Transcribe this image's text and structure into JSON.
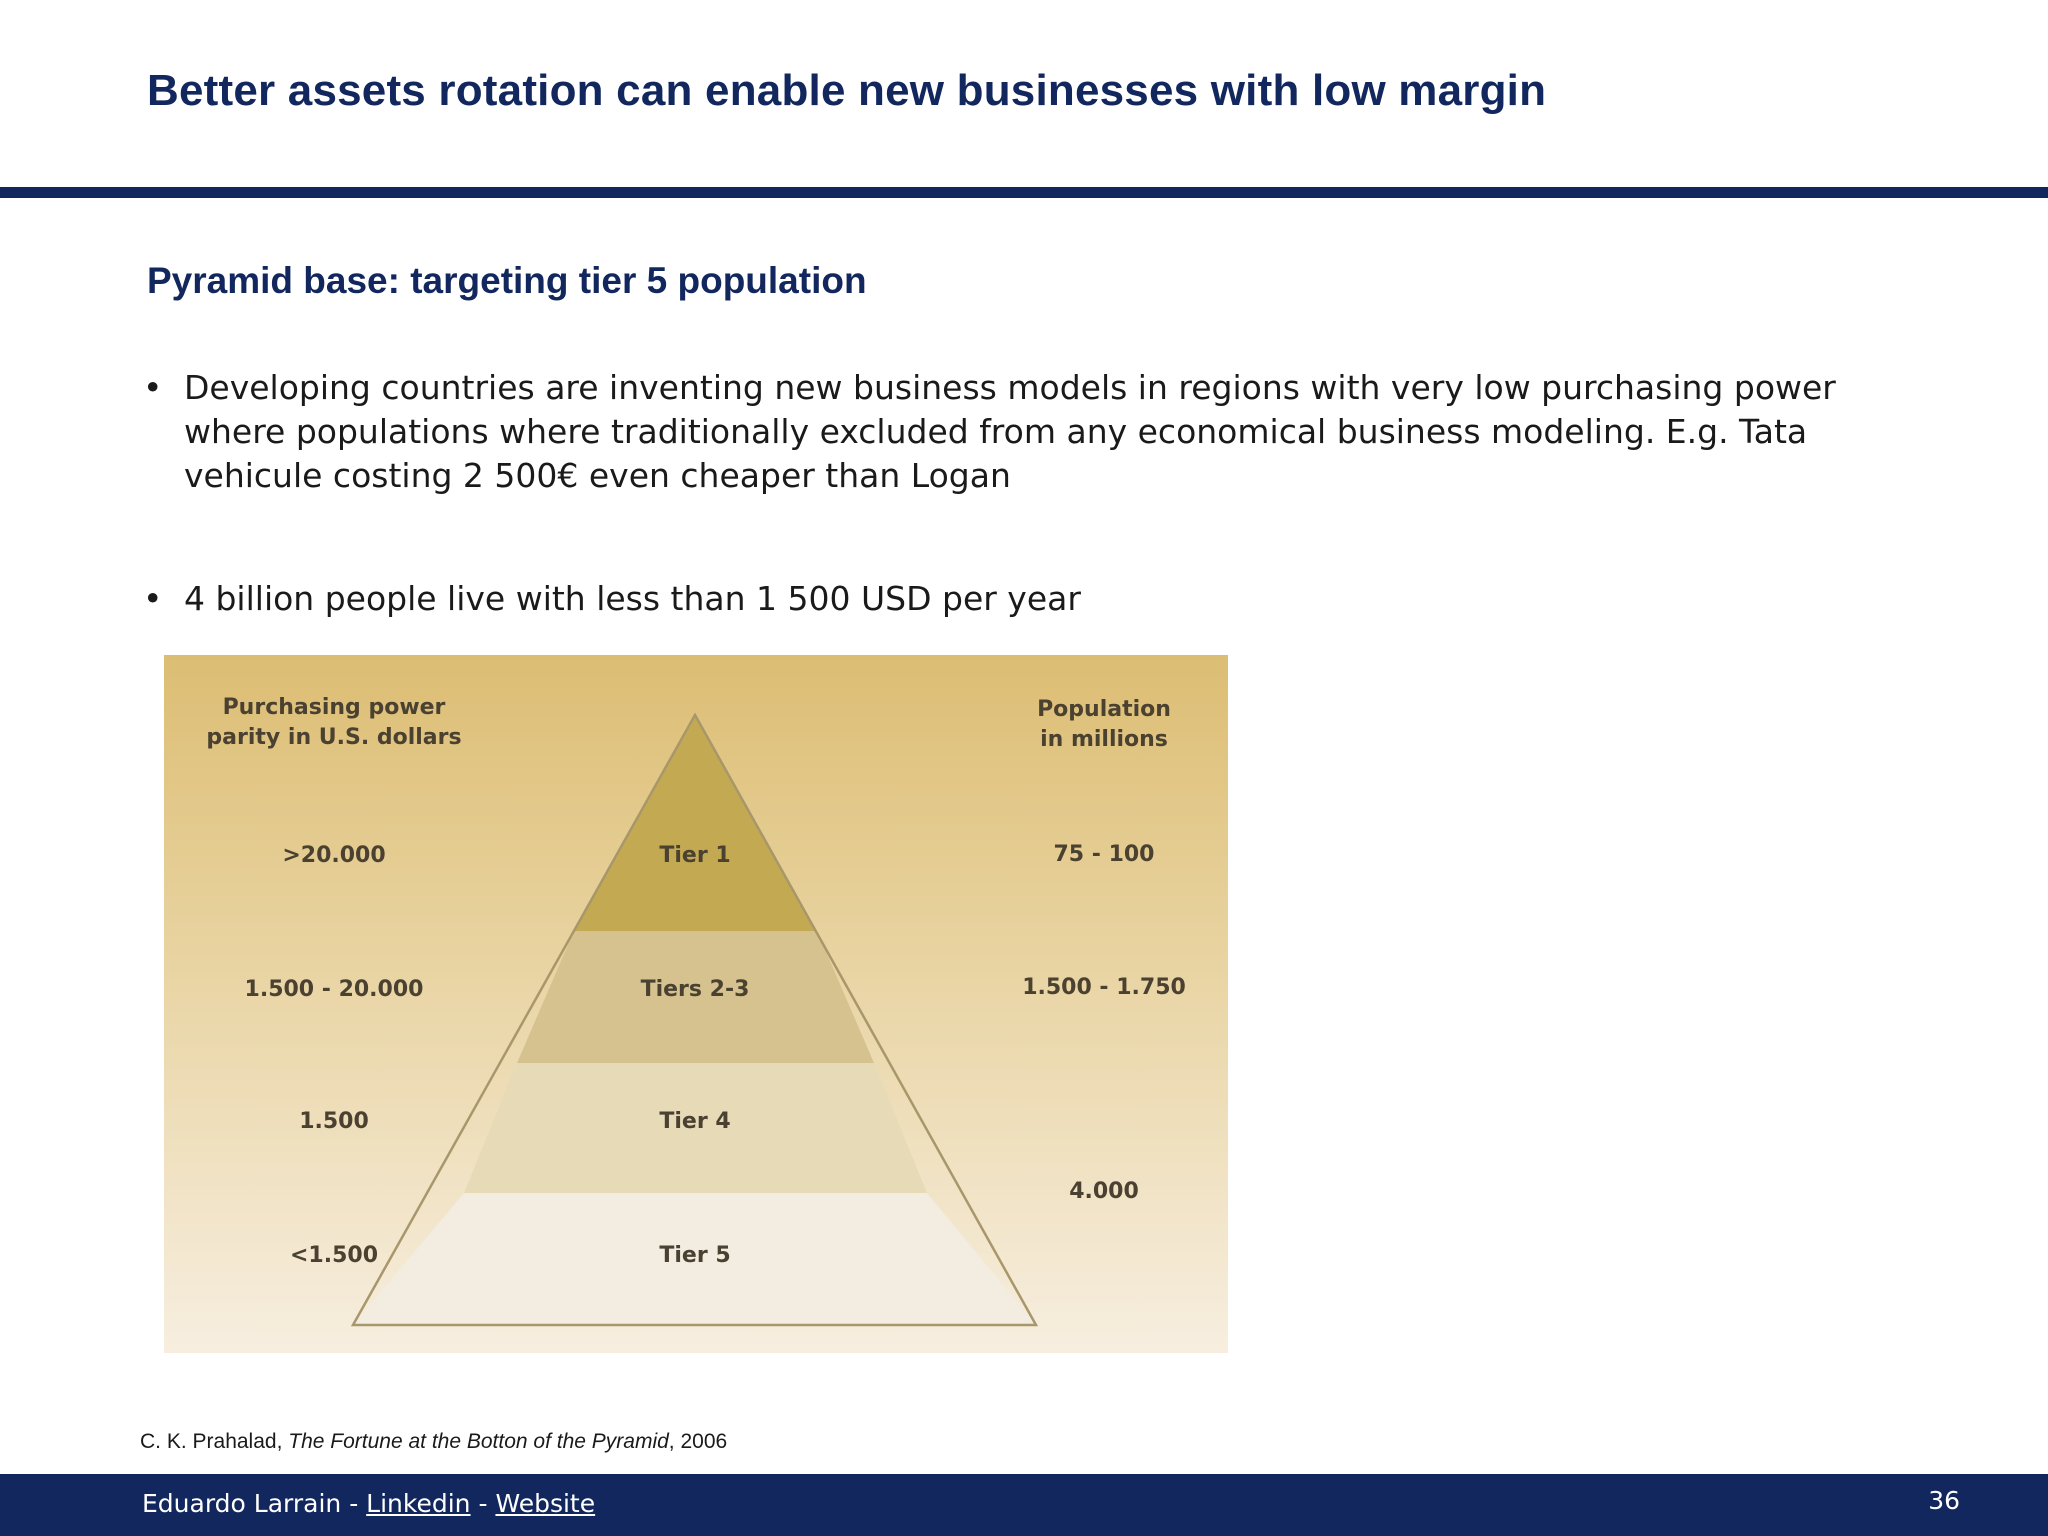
{
  "slide": {
    "title": "Better assets rotation can enable new businesses with low margin",
    "subtitle": "Pyramid base: targeting tier 5 population",
    "bullets": [
      "Developing countries are inventing new business models in regions with very low purchasing power where populations where traditionally excluded from any economical business modeling. E.g. Tata vehicule costing 2 500€ even cheaper than Logan",
      "4 billion people live with less than 1 500 USD per year"
    ],
    "bullet_symbol": "•"
  },
  "pyramid": {
    "left_header_line1": "Purchasing power",
    "left_header_line2": "parity in U.S. dollars",
    "right_header_line1": "Population",
    "right_header_line2": "in millions",
    "tiers": [
      {
        "name": "Tier 1",
        "ppp": ">20.000",
        "population": "75 - 100",
        "color": "#c3aa52"
      },
      {
        "name": "Tiers 2-3",
        "ppp": "1.500 - 20.000",
        "population": "1.500 - 1.750",
        "color": "#d6c28e"
      },
      {
        "name": "Tier 4",
        "ppp": "1.500",
        "population": "",
        "color": "#e6dab7"
      },
      {
        "name": "Tier 5",
        "ppp": "<1.500",
        "population": "",
        "color": "#f2ede0"
      }
    ],
    "combined_population_tiers_4_5": "4.000"
  },
  "citation": {
    "author": "C. K. Prahalad, ",
    "book": "The Fortune at the Botton of the Pyramid",
    "year": ", 2006"
  },
  "footer": {
    "author": "Eduardo Larrain - ",
    "separator": " - ",
    "linkedin": "Linkedin",
    "website": "Website",
    "page_number": "36"
  },
  "colors": {
    "navy": "#12275e",
    "pyramid_outline": "#a8976a"
  }
}
